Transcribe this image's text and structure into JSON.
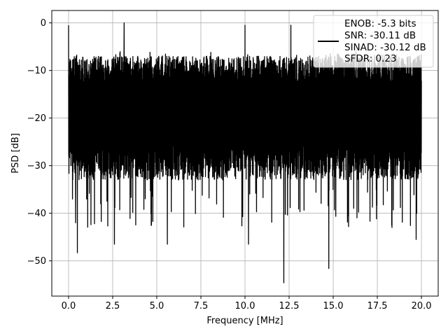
{
  "chart_data": {
    "type": "line",
    "title": "",
    "xlabel": "Frequency [MHz]",
    "ylabel": "PSD [dB]",
    "xlim": [
      -0.95,
      20.95
    ],
    "ylim": [
      -57.4,
      2.6
    ],
    "xticks": [
      0.0,
      2.5,
      5.0,
      7.5,
      10.0,
      12.5,
      15.0,
      17.5,
      20.0
    ],
    "xtick_labels": [
      "0.0",
      "2.5",
      "5.0",
      "7.5",
      "10.0",
      "12.5",
      "15.0",
      "17.5",
      "20.0"
    ],
    "yticks": [
      0,
      -10,
      -20,
      -30,
      -40,
      -50
    ],
    "ytick_labels": [
      "0",
      "−10",
      "−20",
      "−30",
      "−40",
      "−50"
    ],
    "grid": true,
    "line_color": "#000000",
    "legend": {
      "placement": "top-right",
      "entries": [
        "ENOB: -5.3 bits",
        "SNR: -30.11 dB",
        "SINAD: -30.12 dB",
        "SFDR: 0.23"
      ]
    },
    "series": [
      {
        "x_range": [
          0,
          20
        ],
        "band_upper_dB": -7,
        "band_lower_dB": -33,
        "notable_points": [
          {
            "x": 0.0,
            "y": -0.5
          },
          {
            "x": 3.15,
            "y": 0.0
          },
          {
            "x": 10.0,
            "y": -0.5
          },
          {
            "x": 12.6,
            "y": -0.5
          },
          {
            "x": 0.5,
            "y": -48.3
          },
          {
            "x": 0.4,
            "y": -42.0
          },
          {
            "x": 2.6,
            "y": -46.5
          },
          {
            "x": 5.6,
            "y": -46.5
          },
          {
            "x": 10.2,
            "y": -46.5
          },
          {
            "x": 12.2,
            "y": -54.6
          },
          {
            "x": 14.75,
            "y": -51.6
          },
          {
            "x": 19.7,
            "y": -45.5
          }
        ]
      }
    ]
  }
}
